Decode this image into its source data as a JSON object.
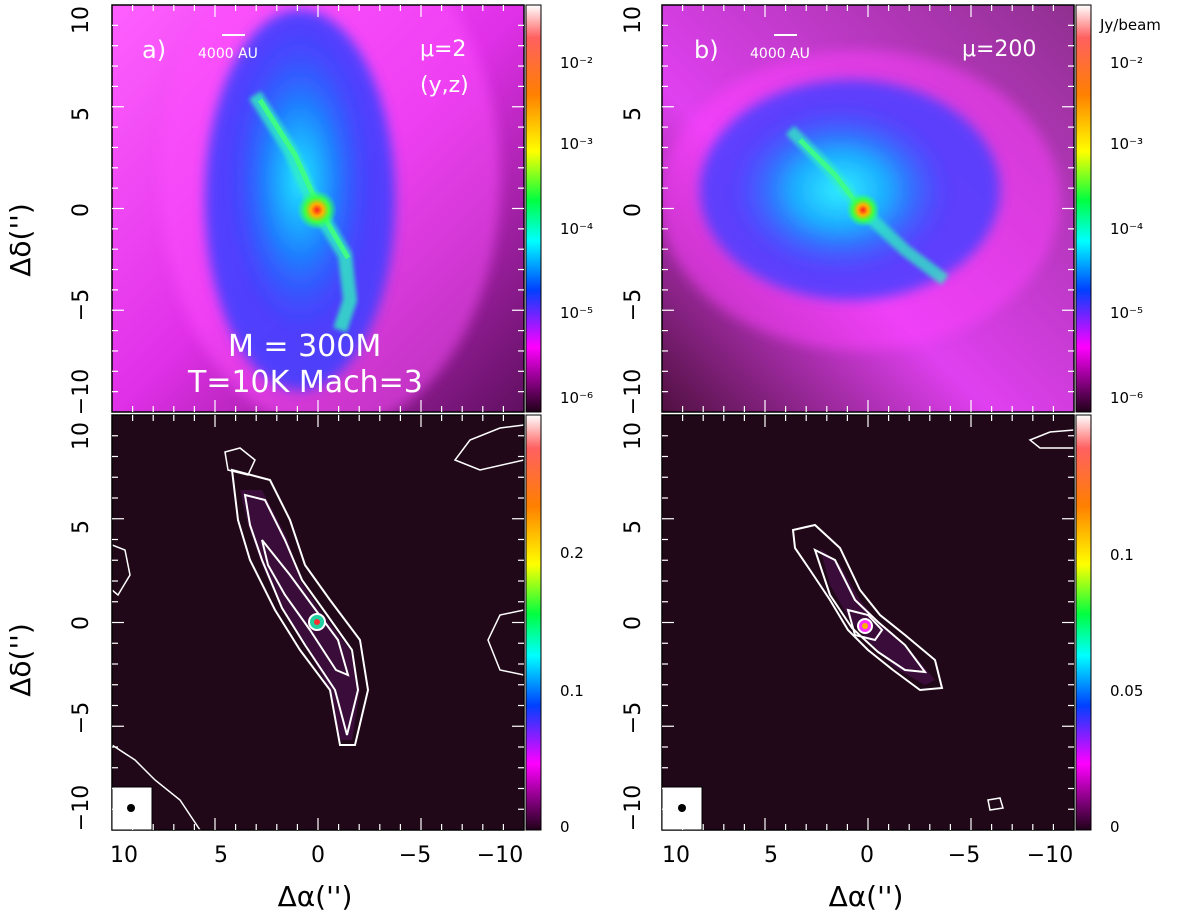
{
  "figure": {
    "ylabel": "Δδ('')",
    "xlabel": "Δα('')",
    "x_ticks": [
      "10",
      "5",
      "0",
      "−5",
      "−10"
    ],
    "y_ticks": [
      "10",
      "5",
      "0",
      "−5",
      "−10"
    ],
    "colorbar_unit": "Jy/beam",
    "colors": {
      "background_top": "#ff40ff",
      "background_bottom": "#200818",
      "cloud_blue": "#1a5cff",
      "cloud_cyan": "#22d8ff",
      "core_red": "#ff2020",
      "contour": "#ffffff"
    }
  },
  "panels": [
    {
      "label": "a)",
      "scale_text": "4000 AU",
      "mu_text": "μ=2",
      "view_text": "(y,z)",
      "mass_text": "M  =  300M",
      "conditions_text": "T=10K  Mach=3",
      "colorbar_ticks": [
        "10⁻²",
        "10⁻³",
        "10⁻⁴",
        "10⁻⁵",
        "10⁻⁶"
      ]
    },
    {
      "label": "b)",
      "scale_text": "4000 AU",
      "mu_text": "μ=200",
      "view_text": "",
      "colorbar_ticks": [
        "10⁻²",
        "10⁻³",
        "10⁻⁴",
        "10⁻⁵",
        "10⁻⁶"
      ]
    },
    {
      "label": "",
      "colorbar_ticks": [
        "0.2",
        "0.1",
        "0"
      ]
    },
    {
      "label": "",
      "colorbar_ticks": [
        "0.1",
        "0.05",
        "0"
      ]
    }
  ]
}
